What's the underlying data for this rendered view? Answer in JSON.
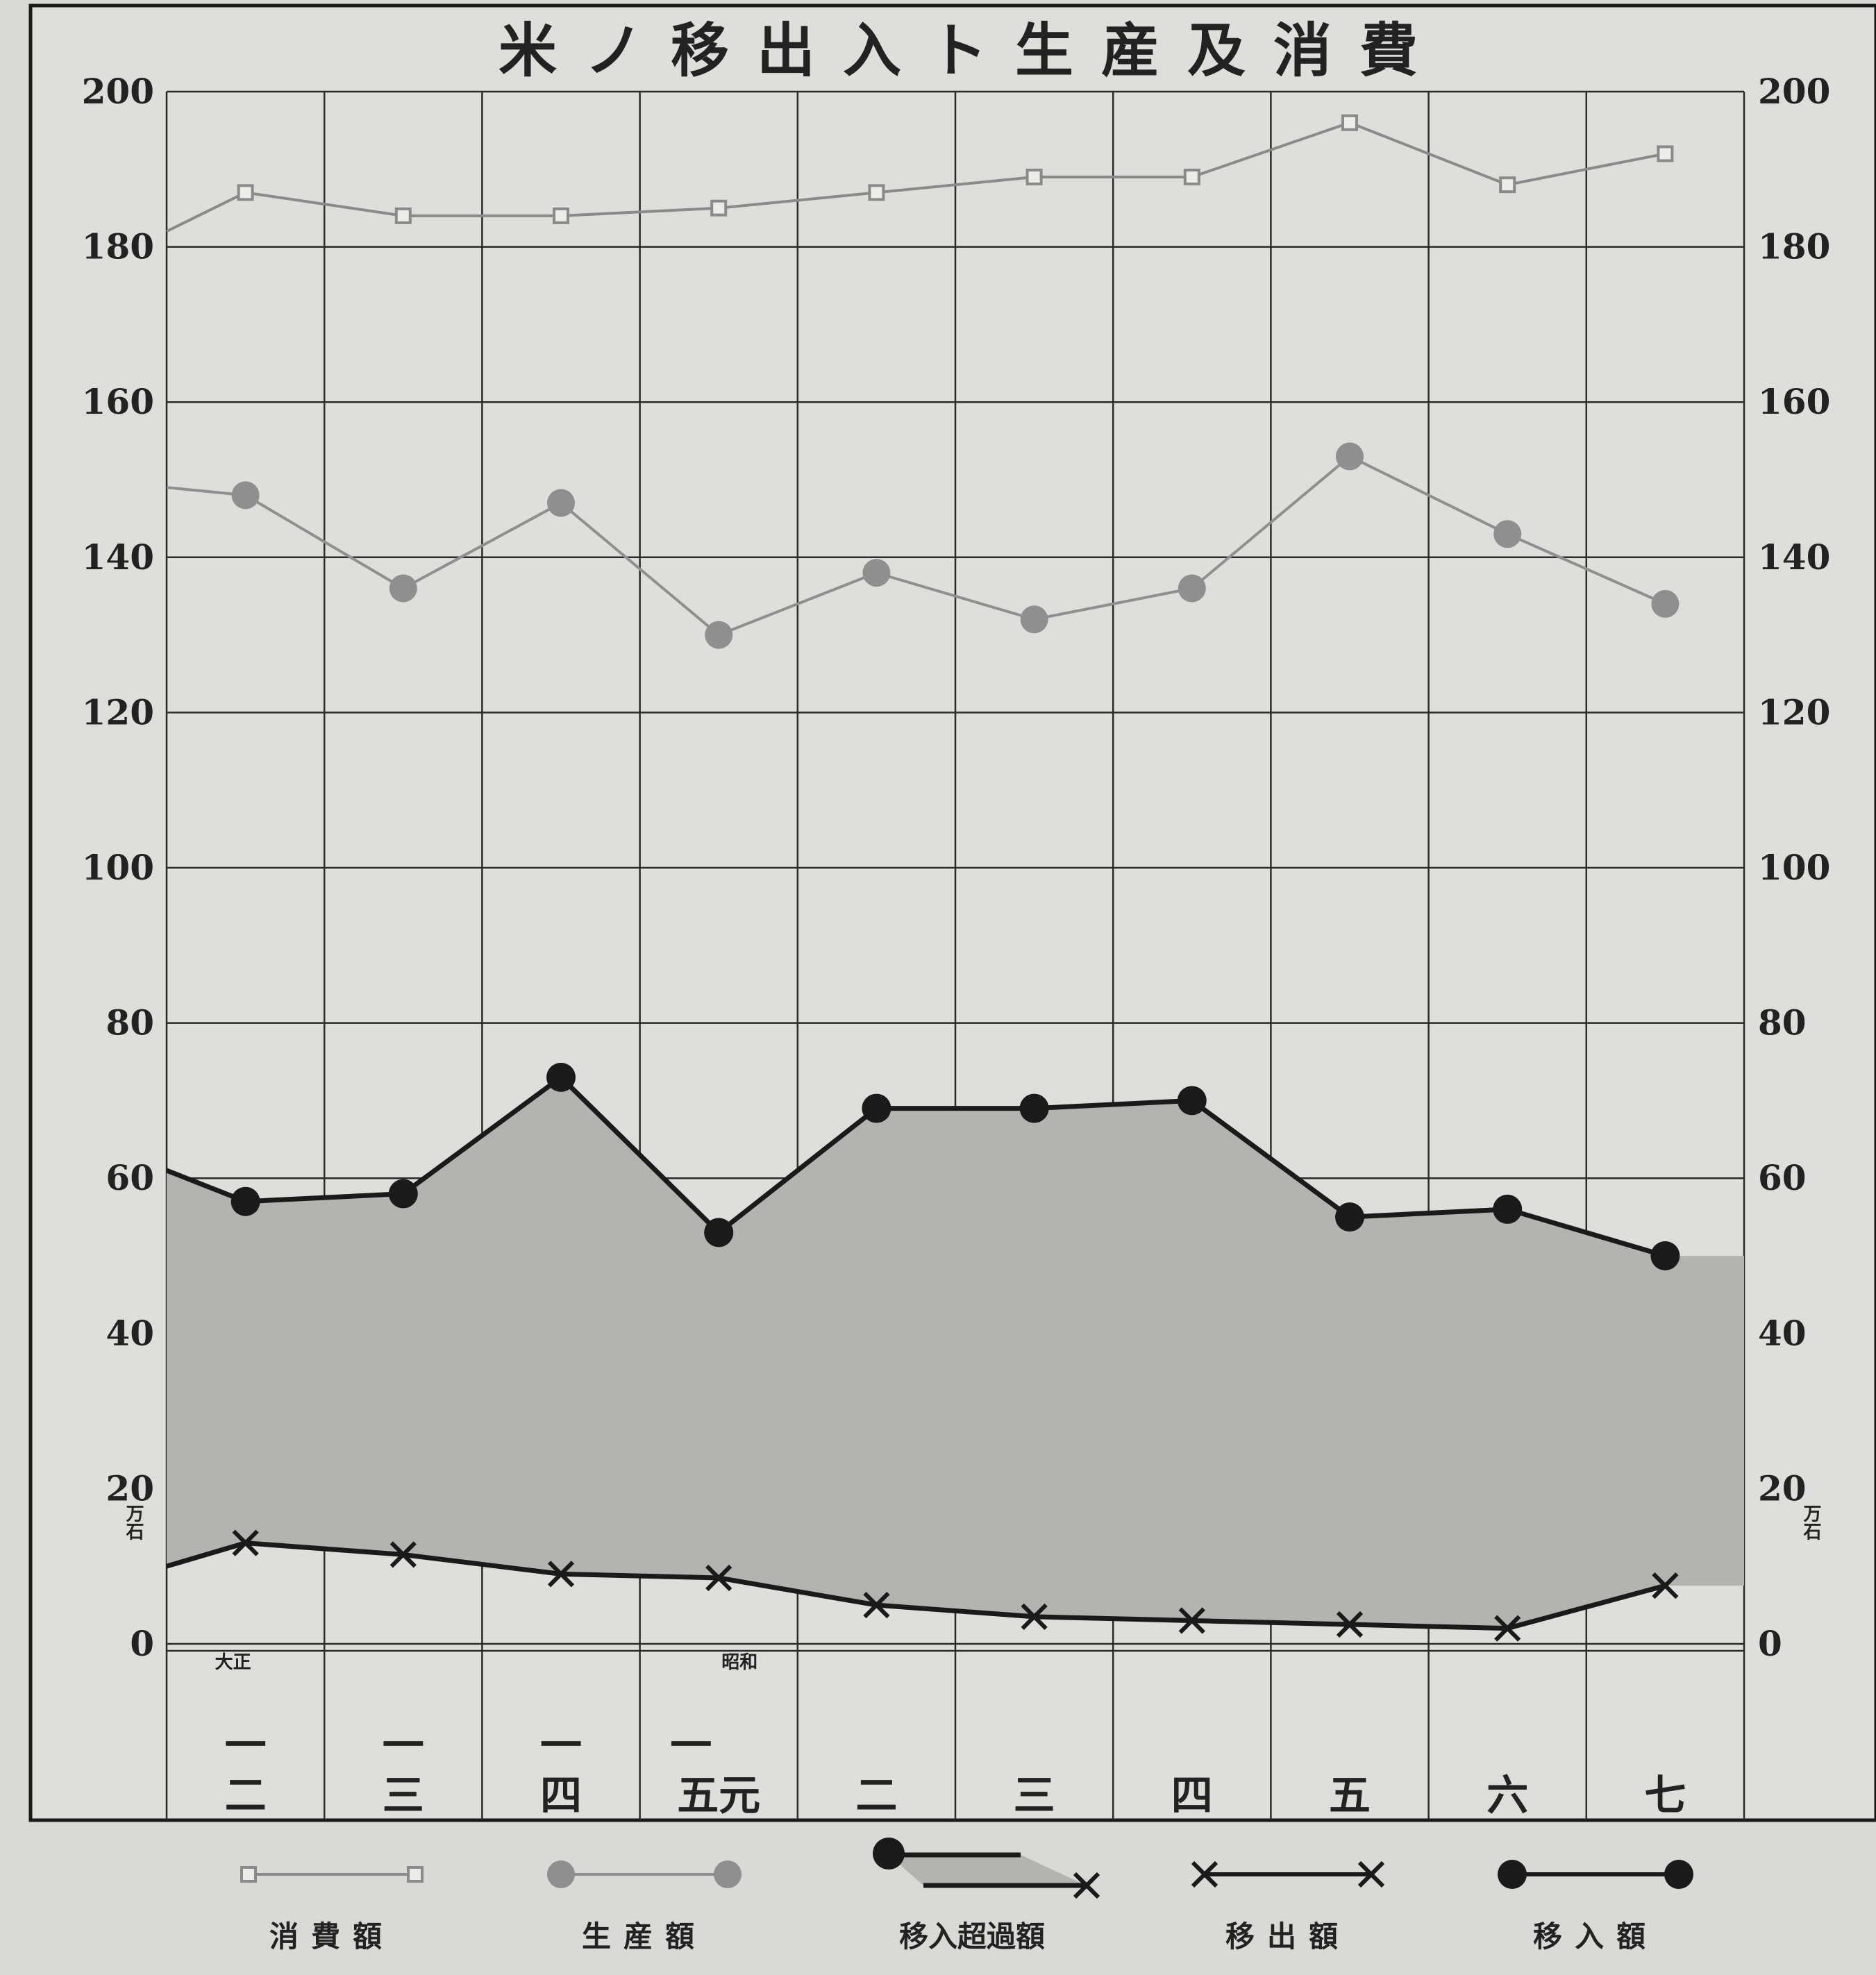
{
  "chart_data": {
    "type": "line",
    "title": "米ノ移出入ト生産及消費",
    "unit": "万石",
    "ylim": [
      0,
      200
    ],
    "y_ticks": [
      0,
      20,
      40,
      60,
      80,
      100,
      120,
      140,
      160,
      180,
      200
    ],
    "grid": true,
    "legend_position": "bottom",
    "era_labels": [
      {
        "text": "大正",
        "category_index": 0
      },
      {
        "text": "昭和",
        "category_index": 3
      }
    ],
    "x_labels": [
      {
        "text": "一\n二"
      },
      {
        "text": "一\n三"
      },
      {
        "text": "一\n四"
      },
      {
        "text": "一\n五元"
      },
      {
        "text": "二"
      },
      {
        "text": "三"
      },
      {
        "text": "四"
      },
      {
        "text": "五"
      },
      {
        "text": "六"
      },
      {
        "text": "七"
      }
    ],
    "series": [
      {
        "name": "消費額",
        "marker": "square",
        "color": "#8a8a8a",
        "start_value": 182,
        "values": [
          187,
          184,
          184,
          185,
          187,
          189,
          189,
          196,
          188,
          192
        ]
      },
      {
        "name": "生産額",
        "marker": "circle-grey",
        "color": "#8f8f8f",
        "start_value": 149,
        "values": [
          148,
          136,
          147,
          130,
          138,
          132,
          136,
          153,
          143,
          134
        ]
      },
      {
        "name": "移入額",
        "marker": "circle-black",
        "color": "#1a1a1a",
        "start_value": 61,
        "values": [
          57,
          58,
          73,
          53,
          69,
          69,
          70,
          55,
          56,
          50
        ]
      },
      {
        "name": "移出額",
        "marker": "x",
        "color": "#1a1a1a",
        "start_value": 10,
        "values": [
          13,
          11.5,
          9,
          8.5,
          5,
          3.5,
          3,
          2.5,
          2,
          7.5
        ]
      }
    ],
    "excess_label": "移入超過額",
    "excess_color": "#b3b3af"
  }
}
